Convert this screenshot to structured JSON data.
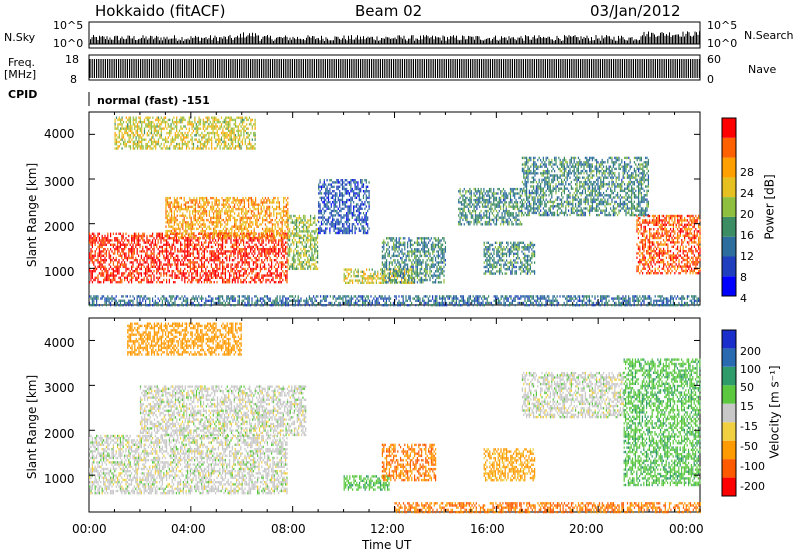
{
  "header": {
    "station": "Hokkaido (fitACF)",
    "beam": "Beam 02",
    "date": "03/Jan/2012"
  },
  "strips": {
    "nsky_label": "N.Sky",
    "nsky_ticks": [
      "10^5",
      "10^0"
    ],
    "nsearch_label": "N.Search",
    "freq_label_top": "Freq.",
    "freq_label_bottom": "[MHz]",
    "freq_ticks": [
      "18",
      "8"
    ],
    "nave_label": "Nave",
    "nave_ticks": [
      "60",
      "0"
    ],
    "cpid_label": "CPID",
    "cpid_value": "normal (fast) -151"
  },
  "xaxis": {
    "label": "Time UT",
    "ticks": [
      "00:00",
      "04:00",
      "08:00",
      "12:00",
      "16:00",
      "20:00",
      "00:00"
    ]
  },
  "power_panel": {
    "ylabel": "Slant Range [km]",
    "yticks": [
      "4000",
      "3000",
      "2000",
      "1000"
    ],
    "colorbar_label": "Power [dB]",
    "colorbar_ticks": [
      "28",
      "24",
      "20",
      "16",
      "12",
      "8",
      "4"
    ],
    "colorbar_colors": [
      "#0000ff",
      "#1f3fbf",
      "#2e6e9e",
      "#3c8c64",
      "#8fbf3f",
      "#e6c020",
      "#ffa000",
      "#ff6000",
      "#ff0000"
    ]
  },
  "velocity_panel": {
    "ylabel": "Slant Range [km]",
    "yticks": [
      "4000",
      "3000",
      "2000",
      "1000"
    ],
    "colorbar_label": "Velocity [m s⁻¹]",
    "colorbar_ticks": [
      "200",
      "100",
      "50",
      "15",
      "-15",
      "-50",
      "-100",
      "-200"
    ],
    "colorbar_colors": [
      "#1a2ecc",
      "#2a6ab0",
      "#2f9a6a",
      "#5cc840",
      "#c8c8c8",
      "#f0d040",
      "#ff9a00",
      "#ff5a00",
      "#ff0000"
    ]
  },
  "chart_data": {
    "type": "heatmap",
    "x_range_hours": [
      0,
      24
    ],
    "y_range_km": [
      180,
      4500
    ],
    "grid": false,
    "power_regions": [
      {
        "t0": 0.0,
        "t1": 7.8,
        "r0": 700,
        "r1": 1800,
        "dB": 28
      },
      {
        "t0": 3.0,
        "t1": 7.8,
        "r0": 1700,
        "r1": 2600,
        "dB": 22
      },
      {
        "t0": 1.0,
        "t1": 6.5,
        "r0": 3700,
        "r1": 4400,
        "dB": 18
      },
      {
        "t0": 7.8,
        "t1": 9.0,
        "r0": 1000,
        "r1": 2200,
        "dB": 16
      },
      {
        "t0": 9.0,
        "t1": 11.0,
        "r0": 1800,
        "r1": 3000,
        "dB": 8
      },
      {
        "t0": 10.0,
        "t1": 12.8,
        "r0": 700,
        "r1": 1000,
        "dB": 18
      },
      {
        "t0": 11.5,
        "t1": 14.0,
        "r0": 700,
        "r1": 1700,
        "dB": 12
      },
      {
        "t0": 14.5,
        "t1": 17.0,
        "r0": 2000,
        "r1": 2800,
        "dB": 12
      },
      {
        "t0": 15.5,
        "t1": 17.5,
        "r0": 900,
        "r1": 1600,
        "dB": 12
      },
      {
        "t0": 17.0,
        "t1": 22.0,
        "r0": 2200,
        "r1": 3500,
        "dB": 12
      },
      {
        "t0": 21.5,
        "t1": 24.0,
        "r0": 900,
        "r1": 2200,
        "dB": 26
      },
      {
        "t0": 0.0,
        "t1": 24.0,
        "r0": 200,
        "r1": 400,
        "dB": 10
      }
    ],
    "velocity_regions": [
      {
        "t0": 0.0,
        "t1": 7.8,
        "r0": 600,
        "r1": 1900,
        "v": 0
      },
      {
        "t0": 2.0,
        "t1": 8.5,
        "r0": 1900,
        "r1": 3000,
        "v": 0
      },
      {
        "t0": 1.5,
        "t1": 6.0,
        "r0": 3700,
        "r1": 4400,
        "v": -80
      },
      {
        "t0": 10.0,
        "t1": 11.8,
        "r0": 700,
        "r1": 1000,
        "v": 40
      },
      {
        "t0": 11.5,
        "t1": 13.6,
        "r0": 900,
        "r1": 1700,
        "v": -100
      },
      {
        "t0": 15.5,
        "t1": 17.5,
        "r0": 900,
        "r1": 1600,
        "v": -60
      },
      {
        "t0": 17.0,
        "t1": 21.0,
        "r0": 2300,
        "r1": 3300,
        "v": 0
      },
      {
        "t0": 21.0,
        "t1": 24.0,
        "r0": 800,
        "r1": 3600,
        "v": 40
      },
      {
        "t0": 12.0,
        "t1": 24.0,
        "r0": 200,
        "r1": 400,
        "v": -100
      }
    ]
  }
}
